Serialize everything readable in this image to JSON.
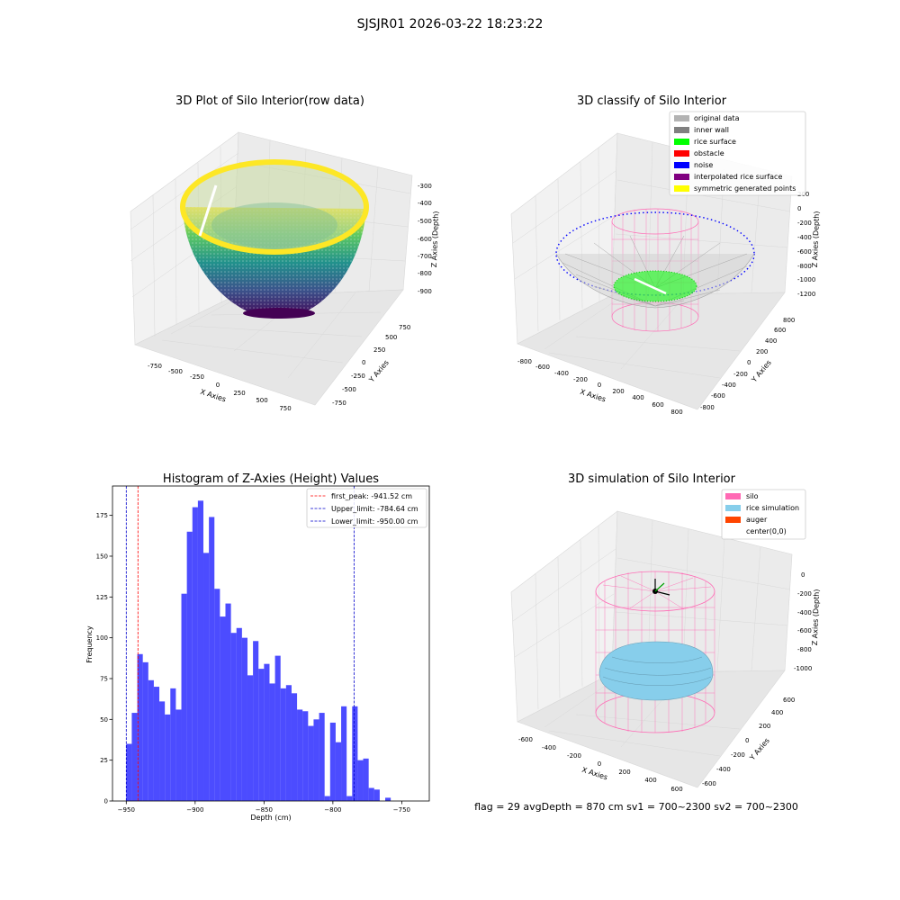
{
  "figure": {
    "suptitle": "SJSJR01 2026-03-22 18:23:22",
    "footer": "flag = 29  avgDepth = 870 cm  sv1 = 700~2300  sv2 = 700~2300"
  },
  "panels": {
    "p1": {
      "title": "3D Plot of Silo Interior(row data)",
      "xlabel": "X Axies",
      "ylabel": "Y Axies",
      "zlabel": "Z Axies (Depth)",
      "xticks": [
        "-750",
        "-500",
        "-250",
        "0",
        "250",
        "500",
        "750"
      ],
      "yticks": [
        "-750",
        "-500",
        "-250",
        "0",
        "250",
        "500",
        "750"
      ],
      "zticks": [
        "-300",
        "-400",
        "-500",
        "-600",
        "-700",
        "-800",
        "-900"
      ]
    },
    "p2": {
      "title": "3D classify of Silo Interior",
      "xlabel": "X Axies",
      "ylabel": "Y Axies",
      "zlabel": "Z Axies (Depth)",
      "xticks": [
        "-800",
        "-600",
        "-400",
        "-200",
        "0",
        "200",
        "400",
        "600",
        "800"
      ],
      "yticks": [
        "-800",
        "-600",
        "-400",
        "-200",
        "0",
        "200",
        "400",
        "600",
        "800"
      ],
      "zticks": [
        "200",
        "0",
        "-200",
        "-400",
        "-600",
        "-800",
        "-1000",
        "-1200"
      ],
      "legend": [
        {
          "label": "original data",
          "color": "#b3b3b3"
        },
        {
          "label": "inner wall",
          "color": "#808080"
        },
        {
          "label": "rice surface",
          "color": "#00ff00"
        },
        {
          "label": "obstacle",
          "color": "#ff0000"
        },
        {
          "label": "noise",
          "color": "#0000ff"
        },
        {
          "label": "interpolated rice surface",
          "color": "#800080"
        },
        {
          "label": "symmetric generated points",
          "color": "#ffff00"
        }
      ]
    },
    "p4": {
      "title": "3D simulation of Silo Interior",
      "xlabel": "X Axies",
      "ylabel": "Y Axies",
      "zlabel": "Z Axies (Depth)",
      "xticks": [
        "-600",
        "-400",
        "-200",
        "0",
        "200",
        "400",
        "600"
      ],
      "yticks": [
        "-600",
        "-400",
        "-200",
        "0",
        "200",
        "400",
        "600"
      ],
      "zticks": [
        "0",
        "-200",
        "-400",
        "-600",
        "-800",
        "-1000"
      ],
      "legend": [
        {
          "label": "silo",
          "color": "#ff69b4"
        },
        {
          "label": "rice simulation",
          "color": "#87ceeb"
        },
        {
          "label": "auger",
          "color": "#ff4500"
        },
        {
          "label": "center(0,0)",
          "color": "#ffffff"
        }
      ]
    }
  },
  "chart_data": {
    "type": "bar",
    "title": "Histogram of Z-Axies (Height) Values",
    "xlabel": "Depth (cm)",
    "ylabel": "Frequency",
    "xlim": [
      -960,
      -730
    ],
    "ylim": [
      0,
      193
    ],
    "xticks": [
      -950,
      -900,
      -850,
      -800,
      -750
    ],
    "yticks": [
      0,
      25,
      50,
      75,
      100,
      125,
      150,
      175
    ],
    "bar_color": "#0000ff",
    "bin_start": -950,
    "bin_width": 4,
    "values": [
      35,
      54,
      90,
      85,
      74,
      70,
      61,
      53,
      69,
      56,
      127,
      165,
      180,
      184,
      152,
      174,
      130,
      113,
      121,
      103,
      106,
      100,
      77,
      98,
      81,
      84,
      72,
      89,
      69,
      71,
      66,
      56,
      55,
      46,
      50,
      54,
      3,
      48,
      36,
      58,
      3,
      58,
      25,
      26,
      8,
      7,
      0,
      2
    ],
    "vlines": [
      {
        "label": "first_peak: -941.52 cm",
        "x": -941.52,
        "color": "#ff0000"
      },
      {
        "label": "Upper_limit: -784.64 cm",
        "x": -784.64,
        "color": "#0000cc"
      },
      {
        "label": "Lower_limit: -950.00 cm",
        "x": -950.0,
        "color": "#0000cc"
      }
    ],
    "legend_position": "top-right"
  }
}
